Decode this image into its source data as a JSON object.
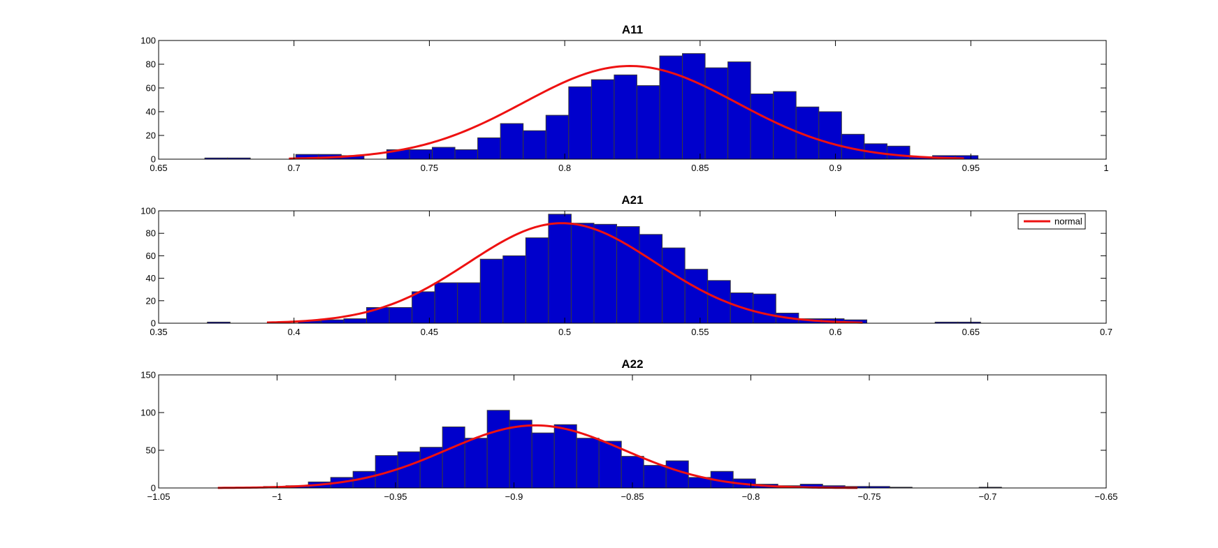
{
  "chart_data": [
    {
      "type": "bar",
      "title": "A11",
      "xlim": [
        0.6,
        1.0
      ],
      "ylim": [
        0,
        100
      ],
      "xticks": [
        "0.65",
        "0.7",
        "0.75",
        "0.8",
        "0.85",
        "0.9",
        "0.95",
        "1"
      ],
      "yticks": [
        "0",
        "20",
        "40",
        "60",
        "80",
        "100"
      ],
      "bin_start": 0.6195,
      "bin_width": 0.0096,
      "values": [
        1,
        1,
        0,
        0,
        4,
        4,
        3,
        0,
        8,
        8,
        10,
        8,
        18,
        30,
        24,
        37,
        61,
        67,
        71,
        62,
        87,
        89,
        77,
        82,
        55,
        57,
        44,
        40,
        21,
        13,
        11,
        2,
        3,
        3,
        0
      ],
      "fit": {
        "name": "normal",
        "mean": 0.799,
        "peak": 78.5,
        "sigma": 0.045,
        "range": [
          0.655,
          0.94
        ]
      },
      "legend": false
    },
    {
      "type": "bar",
      "title": "A21",
      "xlim": [
        0.35,
        0.7
      ],
      "ylim": [
        0,
        100
      ],
      "xticks": [
        "0.35",
        "0.4",
        "0.45",
        "0.5",
        "0.55",
        "0.6",
        "0.65",
        "0.7"
      ],
      "yticks": [
        "0",
        "20",
        "40",
        "60",
        "80",
        "100"
      ],
      "bin_start": 0.368,
      "bin_width": 0.0084,
      "values": [
        1,
        0,
        0,
        0,
        2,
        3,
        4,
        14,
        14,
        28,
        36,
        36,
        57,
        60,
        76,
        97,
        89,
        88,
        86,
        79,
        67,
        48,
        38,
        27,
        26,
        9,
        4,
        4,
        3,
        0,
        0,
        0,
        1,
        1,
        0
      ],
      "fit": {
        "name": "normal",
        "mean": 0.499,
        "peak": 89,
        "sigma": 0.0345,
        "range": [
          0.39,
          0.61
        ]
      },
      "legend": true,
      "legend_entries": [
        "normal"
      ],
      "legend_location": "top-right"
    },
    {
      "type": "bar",
      "title": "A22",
      "xlim": [
        -1.05,
        -0.65
      ],
      "ylim": [
        0,
        150
      ],
      "xticks": [
        "−1.05",
        "−1",
        "−0.95",
        "−0.9",
        "−0.85",
        "−0.8",
        "−0.75",
        "−0.7",
        "−0.65"
      ],
      "yticks": [
        "0",
        "50",
        "100",
        "150"
      ],
      "bin_start": -1.0057,
      "bin_width": 0.00944,
      "values": [
        2,
        3,
        8,
        14,
        22,
        43,
        48,
        54,
        81,
        66,
        103,
        90,
        73,
        84,
        66,
        62,
        42,
        30,
        36,
        14,
        22,
        12,
        5,
        3,
        5,
        3,
        2,
        2,
        1,
        0,
        0,
        0,
        1,
        0
      ],
      "fit": {
        "name": "normal",
        "mean": -0.891,
        "peak": 83,
        "sigma": 0.0375,
        "range": [
          -1.025,
          -0.755
        ]
      },
      "legend": false
    }
  ],
  "colors": {
    "bar_fill": "#0000cc",
    "bar_edge": "#3a3a3a",
    "fit_line": "#ee1111",
    "axes": "#000000"
  }
}
